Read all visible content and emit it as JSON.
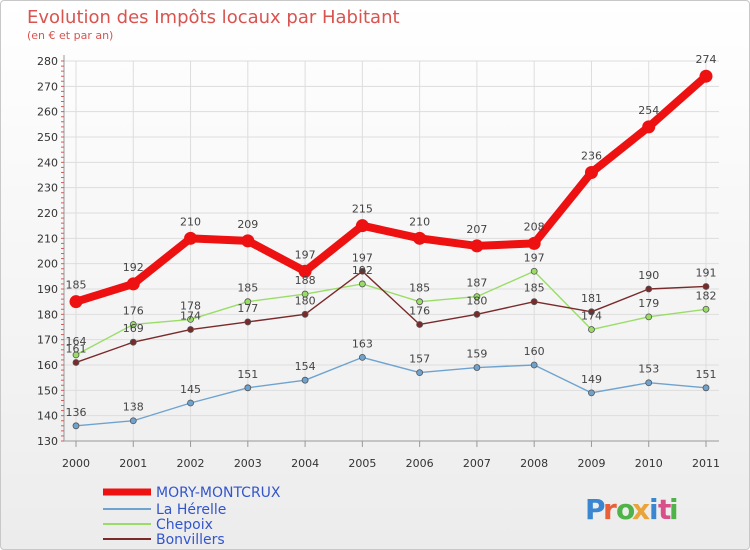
{
  "chart_data": {
    "type": "line",
    "title": "Evolution des Impôts locaux par Habitant",
    "subtitle": "(en € et par an)",
    "xlabel": "",
    "ylabel": "",
    "x": [
      "2000",
      "2001",
      "2002",
      "2003",
      "2004",
      "2005",
      "2006",
      "2007",
      "2008",
      "2009",
      "2010",
      "2011"
    ],
    "yticks": [
      130,
      140,
      150,
      160,
      170,
      180,
      190,
      200,
      210,
      220,
      230,
      240,
      250,
      260,
      270,
      280
    ],
    "ylim": [
      130,
      280
    ],
    "grid": true,
    "legend_position": "bottom-left",
    "series": [
      {
        "name": "MORY-MONTCRUX",
        "color": "#ee1111",
        "values": [
          185,
          192,
          210,
          209,
          197,
          215,
          210,
          207,
          208,
          236,
          254,
          274
        ]
      },
      {
        "name": "La Hérelle",
        "color": "#6fa3cf",
        "values": [
          136,
          138,
          145,
          151,
          154,
          163,
          157,
          159,
          160,
          149,
          153,
          151
        ]
      },
      {
        "name": "Chepoix",
        "color": "#99dd66",
        "values": [
          164,
          176,
          178,
          185,
          188,
          192,
          185,
          187,
          197,
          174,
          179,
          182
        ]
      },
      {
        "name": "Bonvillers",
        "color": "#7a2a2a",
        "values": [
          161,
          169,
          174,
          177,
          180,
          197,
          176,
          180,
          185,
          181,
          190,
          191
        ]
      }
    ]
  },
  "logo": {
    "text": "Proxiti",
    "colors": [
      "#3a86d1",
      "#e95f3a",
      "#4fb34a",
      "#e9a43a",
      "#3a86d1",
      "#d94f8a",
      "#4fb34a"
    ]
  }
}
